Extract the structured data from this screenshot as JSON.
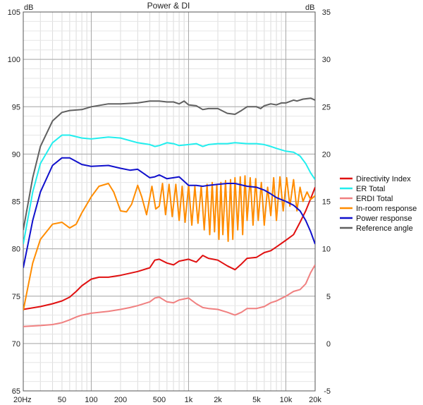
{
  "chart_data": {
    "type": "line",
    "title": "Power & DI",
    "xscale": "log",
    "xlim": [
      20,
      20000
    ],
    "x_ticks": [
      {
        "value": 20,
        "label": "20Hz"
      },
      {
        "value": 50,
        "label": "50"
      },
      {
        "value": 100,
        "label": "100"
      },
      {
        "value": 200,
        "label": "200"
      },
      {
        "value": 500,
        "label": "500"
      },
      {
        "value": 1000,
        "label": "1k"
      },
      {
        "value": 2000,
        "label": "2k"
      },
      {
        "value": 5000,
        "label": "5k"
      },
      {
        "value": 10000,
        "label": "10k"
      },
      {
        "value": 20000,
        "label": "20k"
      }
    ],
    "ylim_left": [
      65,
      105
    ],
    "ylim_right": [
      -5,
      35
    ],
    "y_ticks_left": [
      "65",
      "70",
      "75",
      "80",
      "85",
      "90",
      "95",
      "100",
      "105"
    ],
    "y_ticks_right": [
      "-5",
      "0",
      "5",
      "10",
      "15",
      "20",
      "25",
      "30",
      "35"
    ],
    "y_unit_left": "dB",
    "y_unit_right": "dB",
    "grid": true,
    "legend_position": "right",
    "series": [
      {
        "name": "Directivity Index",
        "color": "#e01010",
        "axis": "right",
        "points": [
          [
            20,
            3.6
          ],
          [
            30,
            3.9
          ],
          [
            40,
            4.2
          ],
          [
            50,
            4.5
          ],
          [
            60,
            4.9
          ],
          [
            70,
            5.5
          ],
          [
            80,
            6.1
          ],
          [
            100,
            6.8
          ],
          [
            120,
            7.0
          ],
          [
            150,
            7.0
          ],
          [
            200,
            7.2
          ],
          [
            300,
            7.6
          ],
          [
            400,
            8.0
          ],
          [
            450,
            8.8
          ],
          [
            500,
            8.9
          ],
          [
            600,
            8.5
          ],
          [
            700,
            8.3
          ],
          [
            800,
            8.7
          ],
          [
            1000,
            8.9
          ],
          [
            1200,
            8.6
          ],
          [
            1400,
            9.3
          ],
          [
            1600,
            9.0
          ],
          [
            2000,
            8.8
          ],
          [
            2500,
            8.2
          ],
          [
            3000,
            7.8
          ],
          [
            3500,
            8.4
          ],
          [
            4000,
            9.0
          ],
          [
            5000,
            9.1
          ],
          [
            6000,
            9.6
          ],
          [
            7000,
            9.8
          ],
          [
            8000,
            10.2
          ],
          [
            10000,
            10.9
          ],
          [
            12000,
            11.5
          ],
          [
            14000,
            12.8
          ],
          [
            16000,
            14.0
          ],
          [
            18000,
            15.3
          ],
          [
            20000,
            16.5
          ]
        ]
      },
      {
        "name": "ER Total",
        "color": "#22eeee",
        "axis": "left",
        "points": [
          [
            20,
            80.5
          ],
          [
            25,
            86.0
          ],
          [
            30,
            89.0
          ],
          [
            40,
            91.2
          ],
          [
            50,
            92.0
          ],
          [
            60,
            92.0
          ],
          [
            80,
            91.7
          ],
          [
            100,
            91.6
          ],
          [
            150,
            91.8
          ],
          [
            200,
            91.7
          ],
          [
            300,
            91.2
          ],
          [
            400,
            91.0
          ],
          [
            450,
            90.8
          ],
          [
            500,
            90.9
          ],
          [
            600,
            91.2
          ],
          [
            700,
            91.1
          ],
          [
            800,
            90.9
          ],
          [
            1000,
            91.0
          ],
          [
            1200,
            91.1
          ],
          [
            1400,
            90.8
          ],
          [
            1600,
            91.0
          ],
          [
            2000,
            91.1
          ],
          [
            2500,
            91.1
          ],
          [
            3000,
            91.2
          ],
          [
            4000,
            91.1
          ],
          [
            5000,
            91.1
          ],
          [
            6000,
            91.0
          ],
          [
            7000,
            90.8
          ],
          [
            8000,
            90.6
          ],
          [
            10000,
            90.3
          ],
          [
            12000,
            90.2
          ],
          [
            14000,
            89.8
          ],
          [
            16000,
            89.0
          ],
          [
            18000,
            88.0
          ],
          [
            20000,
            87.3
          ]
        ]
      },
      {
        "name": "ERDI Total",
        "color": "#f08080",
        "axis": "right",
        "points": [
          [
            20,
            1.8
          ],
          [
            30,
            1.9
          ],
          [
            40,
            2.0
          ],
          [
            50,
            2.2
          ],
          [
            60,
            2.5
          ],
          [
            70,
            2.8
          ],
          [
            80,
            3.0
          ],
          [
            100,
            3.2
          ],
          [
            150,
            3.4
          ],
          [
            200,
            3.6
          ],
          [
            250,
            3.8
          ],
          [
            300,
            4.0
          ],
          [
            400,
            4.4
          ],
          [
            450,
            4.8
          ],
          [
            500,
            4.9
          ],
          [
            600,
            4.4
          ],
          [
            700,
            4.3
          ],
          [
            800,
            4.6
          ],
          [
            1000,
            4.8
          ],
          [
            1200,
            4.2
          ],
          [
            1400,
            3.8
          ],
          [
            1600,
            3.7
          ],
          [
            2000,
            3.6
          ],
          [
            2500,
            3.3
          ],
          [
            3000,
            3.0
          ],
          [
            3500,
            3.3
          ],
          [
            4000,
            3.7
          ],
          [
            5000,
            3.7
          ],
          [
            6000,
            3.9
          ],
          [
            7000,
            4.3
          ],
          [
            8000,
            4.5
          ],
          [
            10000,
            5.0
          ],
          [
            12000,
            5.5
          ],
          [
            14000,
            5.7
          ],
          [
            16000,
            6.3
          ],
          [
            18000,
            7.5
          ],
          [
            20000,
            8.3
          ]
        ]
      },
      {
        "name": "In-room response",
        "color": "#ff8c00",
        "axis": "left",
        "points": [
          [
            20,
            73.5
          ],
          [
            25,
            78.5
          ],
          [
            30,
            81.0
          ],
          [
            40,
            82.6
          ],
          [
            50,
            82.8
          ],
          [
            60,
            82.2
          ],
          [
            70,
            82.6
          ],
          [
            80,
            83.8
          ],
          [
            100,
            85.5
          ],
          [
            120,
            86.6
          ],
          [
            150,
            86.9
          ],
          [
            170,
            86.0
          ],
          [
            200,
            84.0
          ],
          [
            230,
            83.9
          ],
          [
            260,
            84.7
          ],
          [
            300,
            86.7
          ],
          [
            330,
            85.5
          ],
          [
            370,
            83.6
          ],
          [
            420,
            86.6
          ],
          [
            460,
            84.2
          ],
          [
            500,
            84.5
          ],
          [
            540,
            86.9
          ],
          [
            580,
            83.6
          ],
          [
            630,
            86.8
          ],
          [
            680,
            83.4
          ],
          [
            740,
            86.8
          ],
          [
            800,
            83.0
          ],
          [
            860,
            86.6
          ],
          [
            920,
            82.8
          ],
          [
            1000,
            86.7
          ],
          [
            1080,
            82.5
          ],
          [
            1160,
            86.6
          ],
          [
            1250,
            82.7
          ],
          [
            1350,
            86.6
          ],
          [
            1450,
            82.0
          ],
          [
            1550,
            86.8
          ],
          [
            1650,
            81.5
          ],
          [
            1750,
            87.0
          ],
          [
            1850,
            81.8
          ],
          [
            1950,
            86.8
          ],
          [
            2050,
            81.0
          ],
          [
            2150,
            87.0
          ],
          [
            2250,
            81.5
          ],
          [
            2400,
            87.2
          ],
          [
            2550,
            80.8
          ],
          [
            2700,
            87.3
          ],
          [
            2850,
            81.0
          ],
          [
            3000,
            87.5
          ],
          [
            3200,
            82.0
          ],
          [
            3400,
            87.6
          ],
          [
            3600,
            81.5
          ],
          [
            3800,
            87.7
          ],
          [
            4000,
            83.0
          ],
          [
            4300,
            87.5
          ],
          [
            4600,
            82.5
          ],
          [
            4900,
            87.4
          ],
          [
            5200,
            83.0
          ],
          [
            5600,
            87.0
          ],
          [
            6000,
            82.5
          ],
          [
            6500,
            86.5
          ],
          [
            7000,
            83.5
          ],
          [
            7500,
            87.5
          ],
          [
            8000,
            83.0
          ],
          [
            8700,
            87.6
          ],
          [
            9400,
            84.0
          ],
          [
            10200,
            87.5
          ],
          [
            11000,
            84.5
          ],
          [
            12000,
            87.3
          ],
          [
            13000,
            84.0
          ],
          [
            14000,
            86.5
          ],
          [
            15000,
            85.0
          ],
          [
            16500,
            86.0
          ],
          [
            18000,
            85.2
          ],
          [
            20000,
            85.6
          ]
        ]
      },
      {
        "name": "Power response",
        "color": "#1010cc",
        "axis": "left",
        "points": [
          [
            20,
            78.0
          ],
          [
            25,
            83.0
          ],
          [
            30,
            86.0
          ],
          [
            40,
            88.8
          ],
          [
            50,
            89.6
          ],
          [
            60,
            89.6
          ],
          [
            80,
            88.9
          ],
          [
            100,
            88.7
          ],
          [
            150,
            88.8
          ],
          [
            200,
            88.5
          ],
          [
            250,
            88.3
          ],
          [
            300,
            88.4
          ],
          [
            400,
            87.5
          ],
          [
            450,
            87.6
          ],
          [
            500,
            87.8
          ],
          [
            600,
            87.4
          ],
          [
            700,
            87.5
          ],
          [
            800,
            87.6
          ],
          [
            1000,
            86.7
          ],
          [
            1200,
            86.7
          ],
          [
            1400,
            86.6
          ],
          [
            1600,
            86.7
          ],
          [
            2000,
            86.8
          ],
          [
            2500,
            86.9
          ],
          [
            3000,
            86.9
          ],
          [
            4000,
            86.6
          ],
          [
            5000,
            86.5
          ],
          [
            6000,
            86.2
          ],
          [
            7000,
            85.8
          ],
          [
            8000,
            85.4
          ],
          [
            10000,
            85.0
          ],
          [
            12000,
            84.6
          ],
          [
            14000,
            84.0
          ],
          [
            16000,
            83.0
          ],
          [
            18000,
            81.8
          ],
          [
            20000,
            80.5
          ]
        ]
      },
      {
        "name": "Reference angle",
        "color": "#606060",
        "axis": "left",
        "points": [
          [
            20,
            82.0
          ],
          [
            25,
            87.5
          ],
          [
            30,
            90.8
          ],
          [
            40,
            93.5
          ],
          [
            50,
            94.4
          ],
          [
            60,
            94.6
          ],
          [
            80,
            94.7
          ],
          [
            100,
            95.0
          ],
          [
            150,
            95.3
          ],
          [
            200,
            95.3
          ],
          [
            300,
            95.4
          ],
          [
            400,
            95.6
          ],
          [
            500,
            95.6
          ],
          [
            600,
            95.5
          ],
          [
            700,
            95.5
          ],
          [
            800,
            95.3
          ],
          [
            900,
            95.6
          ],
          [
            1000,
            95.2
          ],
          [
            1200,
            95.1
          ],
          [
            1400,
            94.7
          ],
          [
            1600,
            94.8
          ],
          [
            2000,
            94.8
          ],
          [
            2500,
            94.3
          ],
          [
            3000,
            94.2
          ],
          [
            3500,
            94.6
          ],
          [
            4000,
            95.0
          ],
          [
            5000,
            95.0
          ],
          [
            5500,
            94.8
          ],
          [
            6000,
            95.1
          ],
          [
            7000,
            95.3
          ],
          [
            8000,
            95.2
          ],
          [
            9000,
            95.4
          ],
          [
            10000,
            95.4
          ],
          [
            12000,
            95.7
          ],
          [
            13000,
            95.6
          ],
          [
            15000,
            95.8
          ],
          [
            18000,
            95.9
          ],
          [
            20000,
            95.7
          ]
        ]
      }
    ]
  }
}
